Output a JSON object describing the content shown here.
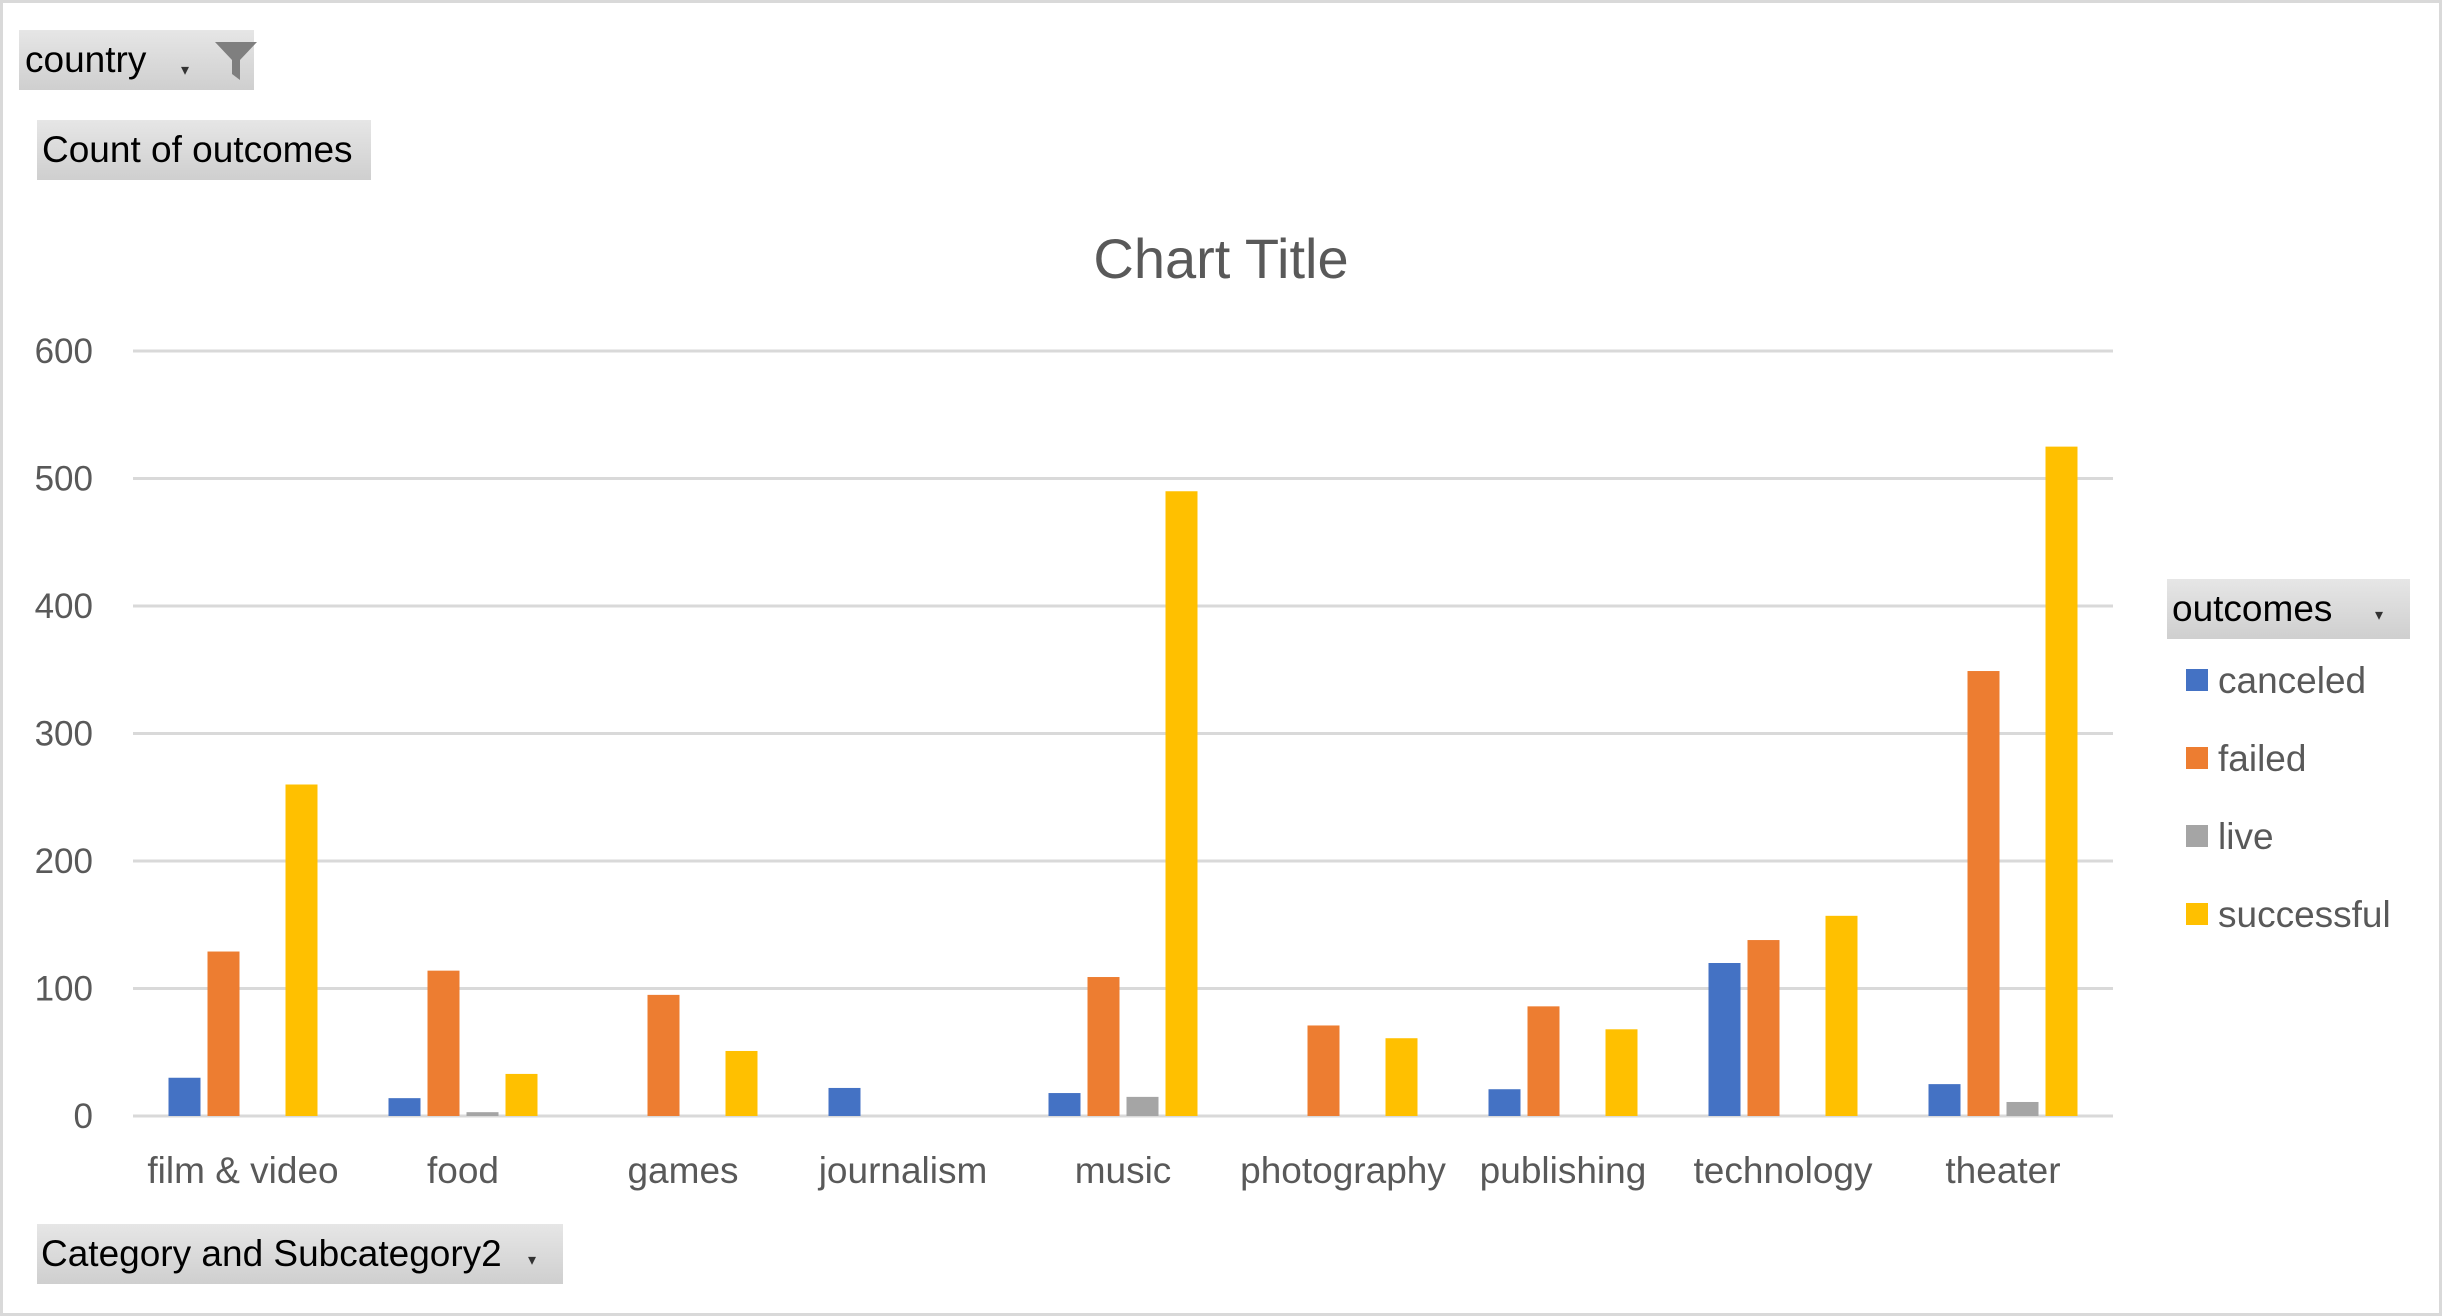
{
  "filter_button": {
    "label": "country",
    "icon": "filter-icon"
  },
  "values_button": {
    "label": "Count of outcomes"
  },
  "axis_button": {
    "label": "Category and Subcategory2"
  },
  "legend_field_button": {
    "label": "outcomes"
  },
  "chart_data": {
    "type": "bar",
    "title": "Chart Title",
    "categories": [
      "film & video",
      "food",
      "games",
      "journalism",
      "music",
      "photography",
      "publishing",
      "technology",
      "theater"
    ],
    "series": [
      {
        "name": "canceled",
        "color": "#4472C4",
        "values": [
          30,
          14,
          null,
          22,
          18,
          null,
          21,
          120,
          25
        ]
      },
      {
        "name": "failed",
        "color": "#ED7D31",
        "values": [
          129,
          114,
          95,
          null,
          109,
          71,
          86,
          138,
          349
        ]
      },
      {
        "name": "live",
        "color": "#A5A5A5",
        "values": [
          null,
          3,
          null,
          null,
          15,
          null,
          null,
          null,
          11
        ]
      },
      {
        "name": "successful",
        "color": "#FFC000",
        "values": [
          260,
          33,
          51,
          null,
          490,
          61,
          68,
          157,
          525
        ]
      }
    ],
    "ylim": [
      0,
      600
    ],
    "yticks": [
      0,
      100,
      200,
      300,
      400,
      500,
      600
    ],
    "grid": true,
    "legend_position": "right"
  }
}
